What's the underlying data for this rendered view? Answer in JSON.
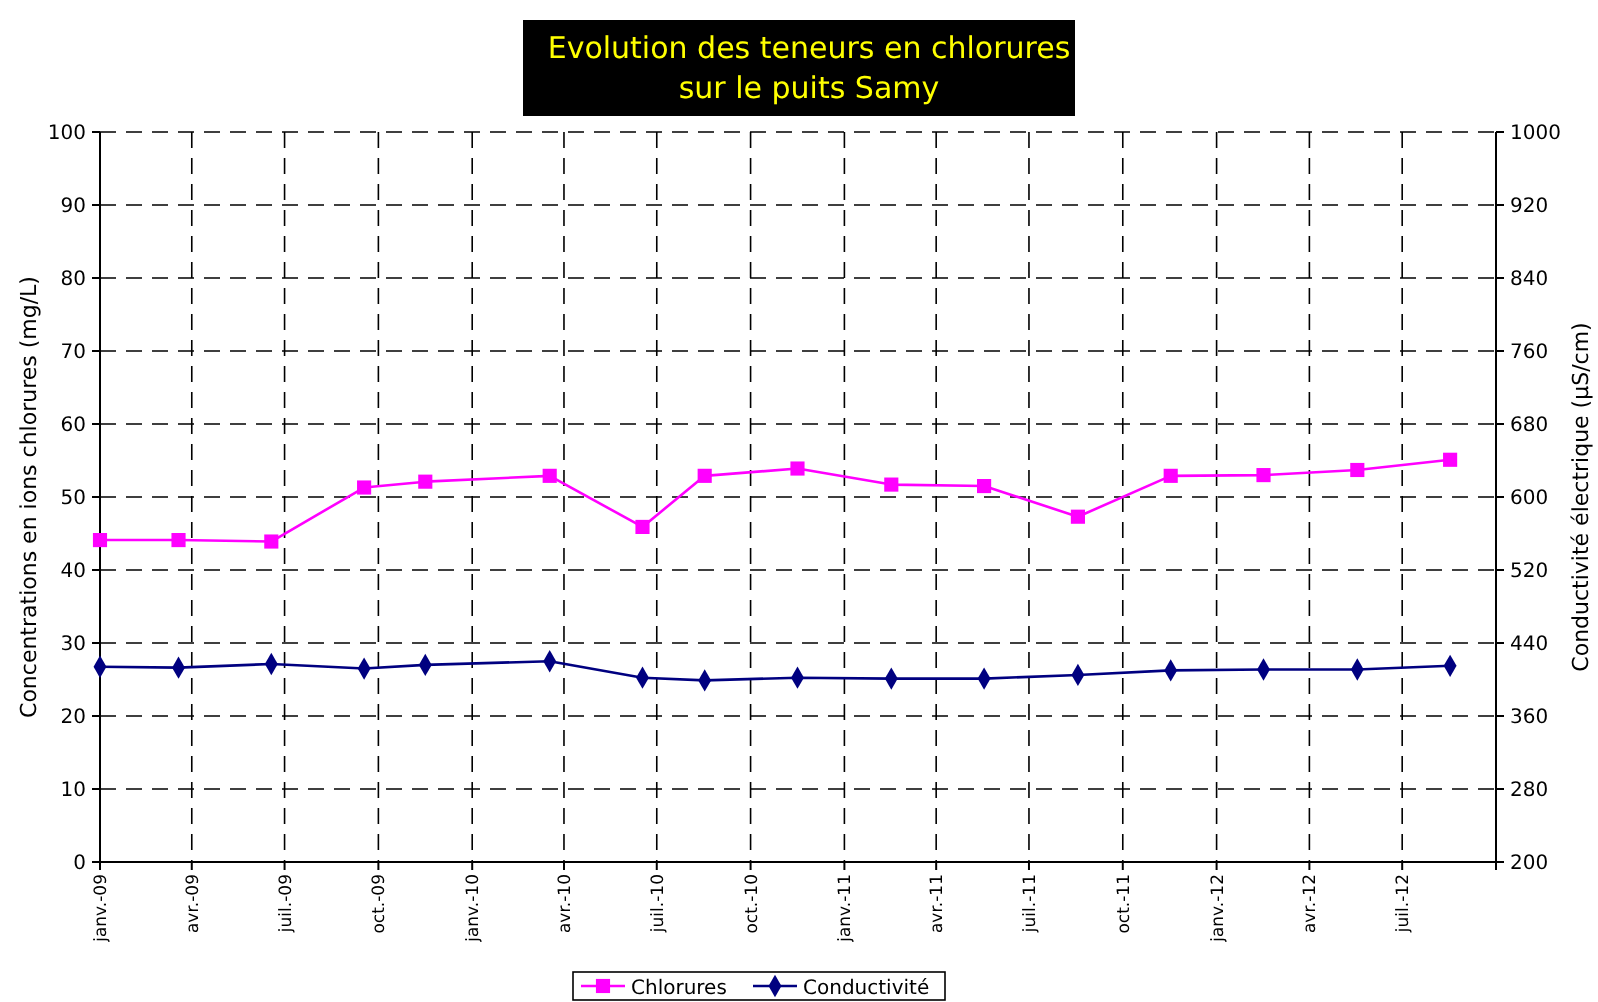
{
  "chart_data": {
    "type": "line",
    "title": "Evolution des teneurs en chlorures\nsur le puits Samy",
    "ylabel": "Concentrations en ions chlorures (mg/L)",
    "y2label": "Conductivité électrique (µS/cm)",
    "x": [
      "2009-01-01",
      "2009-03-19",
      "2009-06-18",
      "2009-09-17",
      "2009-11-16",
      "2010-03-18",
      "2010-06-17",
      "2010-08-17",
      "2010-11-16",
      "2011-02-16",
      "2011-05-18",
      "2011-08-18",
      "2011-11-17",
      "2012-02-16",
      "2012-05-18",
      "2012-08-17"
    ],
    "xlim": [
      "2009-01-01",
      "2012-10-01"
    ],
    "xticks": [
      {
        "value": "2009-01-01",
        "label": "janv.-09"
      },
      {
        "value": "2009-04-01",
        "label": "avr.-09"
      },
      {
        "value": "2009-07-01",
        "label": "juil.-09"
      },
      {
        "value": "2009-10-01",
        "label": "oct.-09"
      },
      {
        "value": "2010-01-01",
        "label": "janv.-10"
      },
      {
        "value": "2010-04-01",
        "label": "avr.-10"
      },
      {
        "value": "2010-07-01",
        "label": "juil.-10"
      },
      {
        "value": "2010-10-01",
        "label": "oct.-10"
      },
      {
        "value": "2011-01-01",
        "label": "janv.-11"
      },
      {
        "value": "2011-04-01",
        "label": "avr.-11"
      },
      {
        "value": "2011-07-01",
        "label": "juil.-11"
      },
      {
        "value": "2011-10-01",
        "label": "oct.-11"
      },
      {
        "value": "2012-01-01",
        "label": "janv.-12"
      },
      {
        "value": "2012-04-01",
        "label": "avr.-12"
      },
      {
        "value": "2012-07-01",
        "label": "juil.-12"
      },
      {
        "value": "2012-10-01",
        "label": null
      }
    ],
    "ylim": [
      0,
      100
    ],
    "yticks": [
      0,
      10,
      20,
      30,
      40,
      50,
      60,
      70,
      80,
      90,
      100
    ],
    "y2lim": [
      200,
      1000
    ],
    "y2ticks": [
      200,
      280,
      360,
      440,
      520,
      600,
      680,
      760,
      840,
      920,
      1000
    ],
    "grid": true,
    "legend": "bottom",
    "line_style": "solid",
    "series": [
      {
        "name": "Chlorures",
        "color": "#ff00ff",
        "marker": "square",
        "values": [
          44.1,
          44.1,
          43.9,
          51.3,
          52.1,
          52.9,
          45.9,
          52.9,
          53.9,
          51.7,
          51.5,
          47.3,
          52.9,
          53.0,
          53.7,
          55.1
        ]
      },
      {
        "name": "Conductivité",
        "color": "#000080",
        "marker": "diamond",
        "axis": "y2",
        "values": [
          414,
          413,
          417,
          412,
          416,
          420,
          402,
          399,
          402,
          401,
          401,
          405,
          410,
          411,
          411,
          415
        ]
      }
    ]
  }
}
